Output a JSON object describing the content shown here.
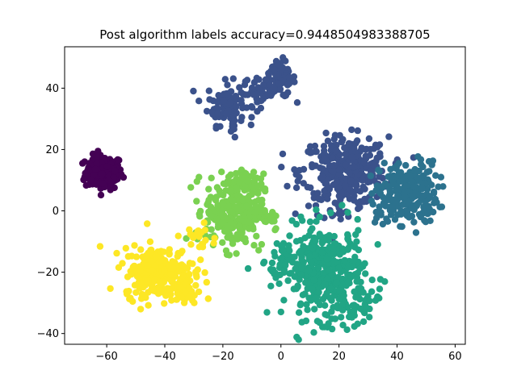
{
  "chart_data": {
    "type": "scatter",
    "title": "Post algorithm labels accuracy=0.9448504983388705",
    "xlabel": "",
    "ylabel": "",
    "xlim": [
      -74.5,
      63.5
    ],
    "ylim": [
      -43.5,
      53.5
    ],
    "xticks": [
      -60,
      -40,
      -20,
      0,
      20,
      40,
      60
    ],
    "yticks": [
      -40,
      -20,
      0,
      20,
      40
    ],
    "xtick_labels": [
      "−60",
      "−40",
      "−20",
      "0",
      "20",
      "40",
      "60"
    ],
    "ytick_labels": [
      "−40",
      "−20",
      "0",
      "20",
      "40"
    ],
    "grid": false,
    "legend": "none",
    "marker_color_scale": "viridis",
    "series": [
      {
        "color": "#440154",
        "clusters": [
          {
            "cx": -61,
            "cy": 12.5,
            "sx": 3.2,
            "sy": 2.8,
            "n": 160
          }
        ]
      },
      {
        "color": "#3b528b",
        "clusters": [
          {
            "cx": -19,
            "cy": 35,
            "sx": 3.2,
            "sy": 3.5,
            "n": 90
          },
          {
            "cx": -7,
            "cy": 39,
            "sx": 3.0,
            "sy": 2.5,
            "n": 40
          },
          {
            "cx": 0,
            "cy": 43,
            "sx": 2.5,
            "sy": 3.0,
            "n": 80
          },
          {
            "cx": -16,
            "cy": 27,
            "sx": 1.0,
            "sy": 2.0,
            "n": 8
          },
          {
            "cx": 22,
            "cy": 13,
            "sx": 7.5,
            "sy": 5.5,
            "n": 320
          },
          {
            "cx": 20,
            "cy": 1,
            "sx": 3.0,
            "sy": 2.0,
            "n": 15
          }
        ]
      },
      {
        "color": "#2c728e",
        "clusters": [
          {
            "cx": 44,
            "cy": 6,
            "sx": 5.0,
            "sy": 5.0,
            "n": 220
          },
          {
            "cx": 37,
            "cy": 2,
            "sx": 3.0,
            "sy": 3.0,
            "n": 25
          }
        ]
      },
      {
        "color": "#21a585",
        "clusters": [
          {
            "cx": 15,
            "cy": -20,
            "sx": 7.0,
            "sy": 7.5,
            "n": 380
          },
          {
            "cx": 1,
            "cy": -16,
            "sx": 3.0,
            "sy": 3.5,
            "n": 30
          },
          {
            "cx": 25,
            "cy": -31,
            "sx": 4.0,
            "sy": 3.0,
            "n": 40
          }
        ]
      },
      {
        "color": "#7ad151",
        "clusters": [
          {
            "cx": -16,
            "cy": 0,
            "sx": 5.0,
            "sy": 6.0,
            "n": 300
          },
          {
            "cx": -4,
            "cy": -2,
            "sx": 2.0,
            "sy": 2.0,
            "n": 15
          },
          {
            "cx": -12,
            "cy": 10,
            "sx": 3.0,
            "sy": 2.0,
            "n": 30
          }
        ]
      },
      {
        "color": "#fde725",
        "clusters": [
          {
            "cx": -42,
            "cy": -20,
            "sx": 6.0,
            "sy": 4.0,
            "n": 260
          },
          {
            "cx": -33,
            "cy": -27,
            "sx": 2.5,
            "sy": 2.0,
            "n": 30
          },
          {
            "cx": -28,
            "cy": -9,
            "sx": 3.0,
            "sy": 2.5,
            "n": 20
          },
          {
            "cx": -47,
            "cy": -4,
            "sx": 0.5,
            "sy": 0.5,
            "n": 1
          }
        ]
      }
    ]
  }
}
